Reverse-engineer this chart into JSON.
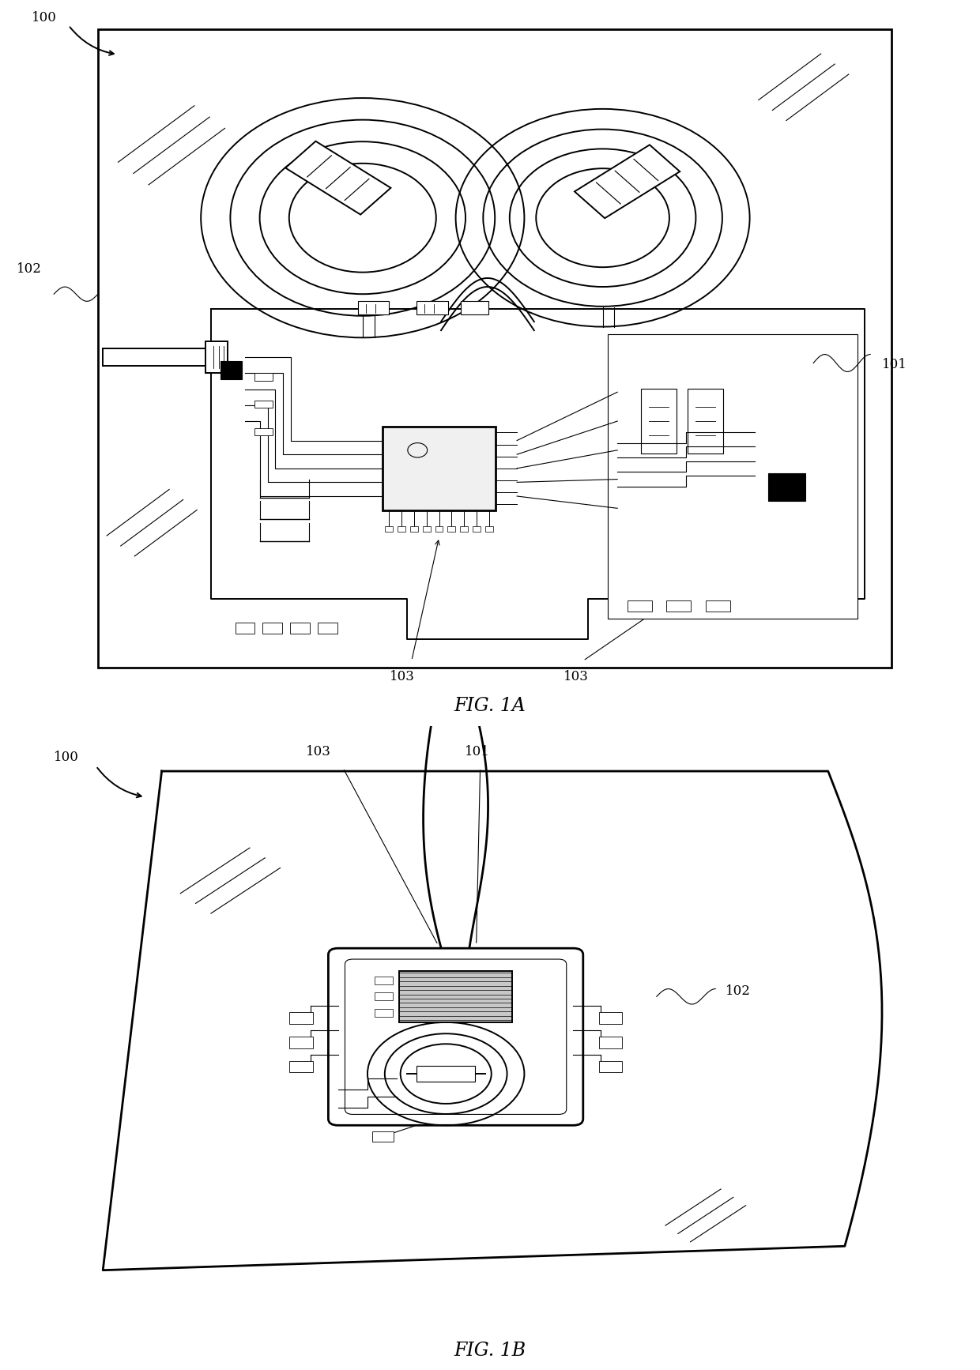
{
  "bg_color": "#ffffff",
  "line_color": "#000000",
  "fig1a_label": "FIG. 1A",
  "fig1b_label": "FIG. 1B",
  "lw_thin": 0.8,
  "lw_med": 1.4,
  "lw_thick": 2.0,
  "lw_ultra": 2.5
}
